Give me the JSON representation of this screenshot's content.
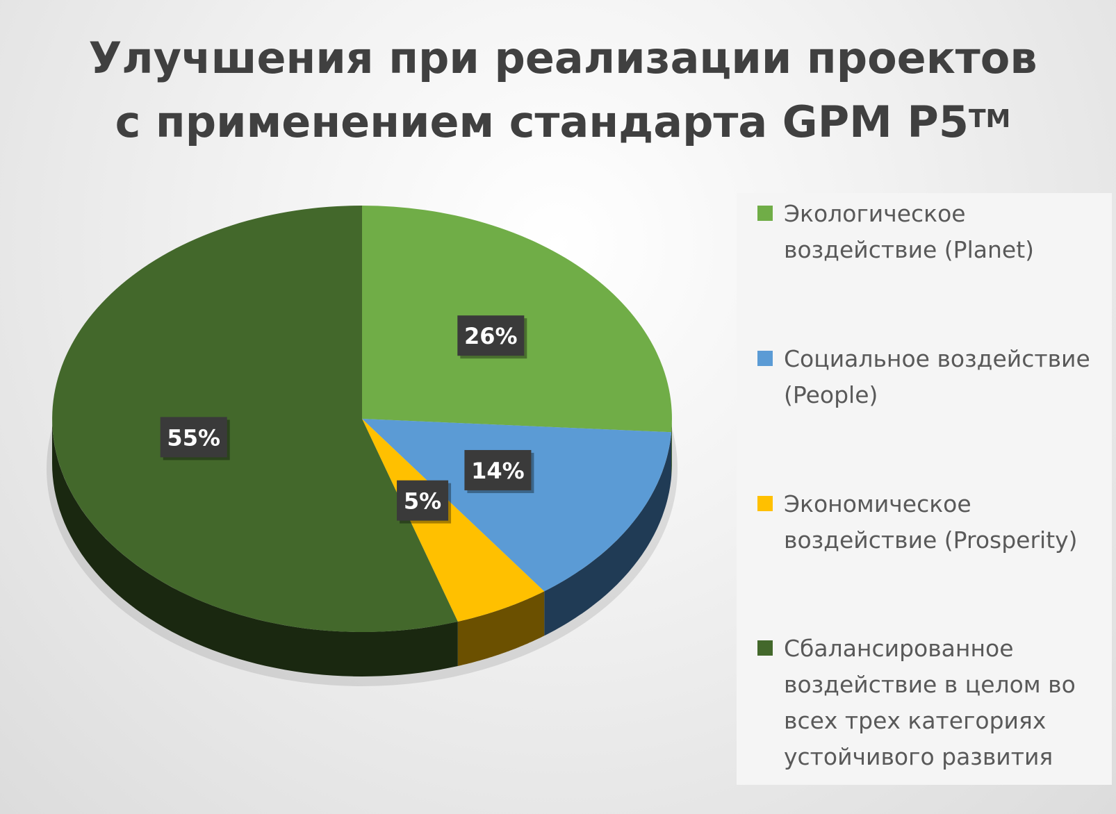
{
  "title": {
    "line1": "Улучшения при реализации проектов",
    "line2": "с применением стандарта GPM P5",
    "trademark": "TM"
  },
  "chart_data": {
    "type": "pie",
    "title": "Улучшения при реализации проектов с применением стандарта GPM P5TM",
    "legend_position": "right",
    "slices": [
      {
        "name": "Экологическое воздействие (Planet)",
        "value": 26,
        "label": "26%",
        "color": "#70ad47",
        "side_color": "#3d5e26"
      },
      {
        "name": "Социальное воздействие (People)",
        "value": 14,
        "label": "14%",
        "color": "#5b9bd5",
        "side_color": "#203b55"
      },
      {
        "name": "Экономическое воздействие (Prosperity)",
        "value": 5,
        "label": "5%",
        "color": "#ffc000",
        "side_color": "#6b5000"
      },
      {
        "name": "Сбалансированное воздействие в целом во всех трех категориях устойчивого развития",
        "value": 55,
        "label": "55%",
        "color": "#43682b",
        "side_color": "#1a2810"
      }
    ]
  },
  "legend": {
    "items": [
      {
        "line1": "Экологическое",
        "line2": "воздействие (Planet)",
        "line3": "",
        "line4": ""
      },
      {
        "line1": "Социальное воздействие",
        "line2": "(People)",
        "line3": "",
        "line4": ""
      },
      {
        "line1": "Экономическое",
        "line2": "воздействие (Prosperity)",
        "line3": "",
        "line4": ""
      },
      {
        "line1": "Сбалансированное",
        "line2": "воздействие в целом во",
        "line3": "всех трех категориях",
        "line4": "устойчивого развития"
      }
    ]
  }
}
